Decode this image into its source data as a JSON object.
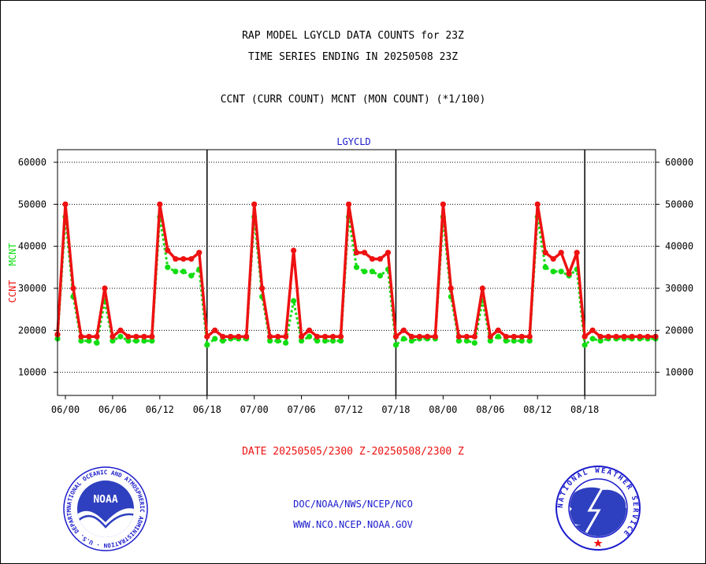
{
  "header": {
    "title1": "RAP MODEL LGYCLD DATA COUNTS for 23Z",
    "title2": "TIME SERIES ENDING IN 20250508 23Z",
    "subtitle": "CCNT (CURR COUNT) MCNT (MON COUNT) (*1/100)"
  },
  "footer": {
    "date_range": "DATE 20250505/2300 Z-20250508/2300 Z",
    "org": "DOC/NOAA/NWS/NCEP/NCO",
    "url": "WWW.NCO.NCEP.NOAA.GOV"
  },
  "logos": {
    "left": "NOAA",
    "left_ring": "NATIONAL OCEANIC AND ATMOSPHERIC ADMINISTRATION · U.S. DEPARTMENT OF COMMERCE",
    "right_ring": "NATIONAL WEATHER SERVICE"
  },
  "colors": {
    "ccnt": "#ee1111",
    "mcnt": "#11dd11",
    "label": "#1a1acc",
    "frame": "#000000"
  },
  "chart_data": {
    "type": "line",
    "title": "LGYCLD",
    "ylabel_ccnt": "CCNT",
    "ylabel_mcnt": "MCNT",
    "ylim": [
      4500,
      63000
    ],
    "yticks": [
      10000,
      20000,
      30000,
      40000,
      50000,
      60000
    ],
    "xlim": [
      -1,
      75
    ],
    "xticks": [
      0,
      6,
      12,
      18,
      24,
      30,
      36,
      42,
      48,
      54,
      60,
      66
    ],
    "xtick_labels": [
      "06/00",
      "06/06",
      "06/12",
      "06/18",
      "07/00",
      "07/06",
      "07/12",
      "07/18",
      "08/00",
      "08/06",
      "08/12",
      "08/18"
    ],
    "day_dividers": [
      18,
      42,
      66
    ],
    "grid": true,
    "series": [
      {
        "name": "CCNT",
        "x": [
          -1,
          0,
          1,
          2,
          3,
          4,
          5,
          6,
          7,
          8,
          9,
          10,
          11,
          12,
          13,
          14,
          15,
          16,
          17,
          18,
          19,
          20,
          21,
          22,
          23,
          24,
          25,
          26,
          27,
          28,
          29,
          30,
          31,
          32,
          33,
          34,
          35,
          36,
          37,
          38,
          39,
          40,
          41,
          42,
          43,
          44,
          45,
          46,
          47,
          48,
          49,
          50,
          51,
          52,
          53,
          54,
          55,
          56,
          57,
          58,
          59,
          60,
          61,
          62,
          63,
          64,
          65,
          66,
          67,
          68,
          69,
          70,
          71,
          72,
          73,
          74,
          75
        ],
        "values": [
          19000,
          50000,
          30000,
          18500,
          18500,
          18500,
          30000,
          18500,
          20000,
          18500,
          18500,
          18500,
          18500,
          50000,
          39000,
          37000,
          37000,
          37000,
          38500,
          18500,
          20000,
          18500,
          18500,
          18500,
          18500,
          50000,
          30000,
          18500,
          18500,
          18500,
          39000,
          18500,
          20000,
          18500,
          18500,
          18500,
          18500,
          50000,
          38500,
          38500,
          37000,
          37000,
          38500,
          18500,
          20000,
          18500,
          18500,
          18500,
          18500,
          50000,
          30000,
          18500,
          18500,
          18500,
          30000,
          18500,
          20000,
          18500,
          18500,
          18500,
          18500,
          50000,
          38500,
          37000,
          38500,
          33500,
          38500,
          18500,
          20000,
          18500,
          18500,
          18500,
          18500,
          18500,
          18500,
          18500,
          18500
        ]
      },
      {
        "name": "MCNT",
        "x": [
          -1,
          0,
          1,
          2,
          3,
          4,
          5,
          6,
          7,
          8,
          9,
          10,
          11,
          12,
          13,
          14,
          15,
          16,
          17,
          18,
          19,
          20,
          21,
          22,
          23,
          24,
          25,
          26,
          27,
          28,
          29,
          30,
          31,
          32,
          33,
          34,
          35,
          36,
          37,
          38,
          39,
          40,
          41,
          42,
          43,
          44,
          45,
          46,
          47,
          48,
          49,
          50,
          51,
          52,
          53,
          54,
          55,
          56,
          57,
          58,
          59,
          60,
          61,
          62,
          63,
          64,
          65,
          66,
          67,
          68,
          69,
          70,
          71,
          72,
          73,
          74,
          75
        ],
        "values": [
          18000,
          47000,
          28000,
          17500,
          17500,
          17000,
          27000,
          17500,
          18500,
          17500,
          17500,
          17500,
          17500,
          47000,
          35000,
          34000,
          34000,
          33000,
          34500,
          16500,
          18000,
          17500,
          18000,
          18000,
          18000,
          47000,
          28000,
          17500,
          17500,
          17000,
          27000,
          17500,
          18500,
          17500,
          17500,
          17500,
          17500,
          47000,
          35000,
          34000,
          34000,
          33000,
          34500,
          16500,
          18000,
          17500,
          18000,
          18000,
          18000,
          47000,
          28000,
          17500,
          17500,
          17000,
          27000,
          17500,
          18500,
          17500,
          17500,
          17500,
          17500,
          47000,
          35000,
          34000,
          34000,
          33000,
          34500,
          16500,
          18000,
          17500,
          18000,
          18000,
          18000,
          18000,
          18000,
          18000,
          18000
        ]
      }
    ]
  }
}
